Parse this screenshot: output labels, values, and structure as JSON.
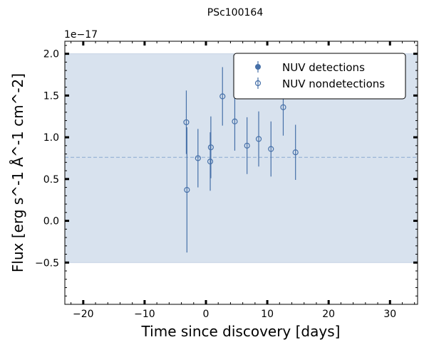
{
  "chart_data": {
    "type": "scatter",
    "title": "PSc100164",
    "xlabel": "Time since discovery [days]",
    "ylabel": "Flux [erg s^-1 Å^-1 cm^-2]",
    "offset_text": "1e−17",
    "xlim": [
      -23,
      34.5
    ],
    "ylim": [
      -1.0,
      2.15
    ],
    "x_ticks": [
      -20,
      -10,
      0,
      10,
      20,
      30
    ],
    "x_tick_labels": [
      "−20",
      "−10",
      "0",
      "10",
      "20",
      "30"
    ],
    "y_ticks": [
      -0.5,
      0.0,
      0.5,
      1.0,
      1.5,
      2.0
    ],
    "y_tick_labels": [
      "−0.5",
      "0.0",
      "0.5",
      "1.0",
      "1.5",
      "2.0"
    ],
    "grid": false,
    "legend_position": "top-right",
    "colors": {
      "series": "#4670a8",
      "band": "#d8e2ee",
      "band_edge": "#c6d3e4"
    },
    "band": {
      "y_low": -0.5,
      "y_high": 2.0
    },
    "mean_line": 0.76,
    "series": [
      {
        "name": "NUV detections",
        "marker": "filled-circle",
        "x": [],
        "y": [],
        "yerr": []
      },
      {
        "name": "NUV nondetections",
        "marker": "open-circle",
        "x": [
          -3.2,
          -3.1,
          -1.3,
          0.7,
          0.8,
          2.7,
          4.7,
          6.7,
          8.6,
          10.6,
          12.6,
          14.6
        ],
        "y": [
          1.18,
          0.37,
          0.75,
          0.71,
          0.88,
          1.49,
          1.19,
          0.9,
          0.98,
          0.86,
          1.36,
          0.82
        ],
        "yerr": [
          0.38,
          0.75,
          0.35,
          0.35,
          0.37,
          0.35,
          0.35,
          0.34,
          0.33,
          0.33,
          0.34,
          0.33
        ]
      }
    ]
  }
}
